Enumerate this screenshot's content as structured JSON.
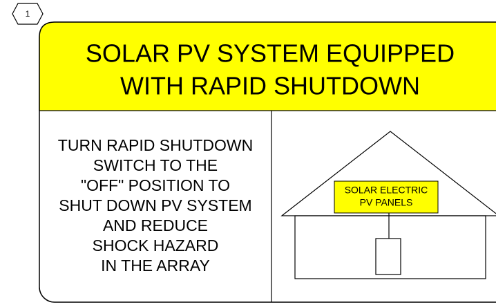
{
  "badge": "1",
  "header": {
    "title_lines": [
      "SOLAR PV SYSTEM EQUIPPED",
      "WITH RAPID SHUTDOWN"
    ]
  },
  "instructions": {
    "lines": [
      "TURN RAPID SHUTDOWN",
      "SWITCH TO THE",
      "\"OFF\" POSITION TO",
      "SHUT DOWN PV SYSTEM",
      "AND REDUCE",
      "SHOCK HAZARD",
      "IN THE ARRAY"
    ]
  },
  "diagram": {
    "panel_label_lines": [
      "SOLAR ELECTRIC",
      "PV PANELS"
    ]
  }
}
